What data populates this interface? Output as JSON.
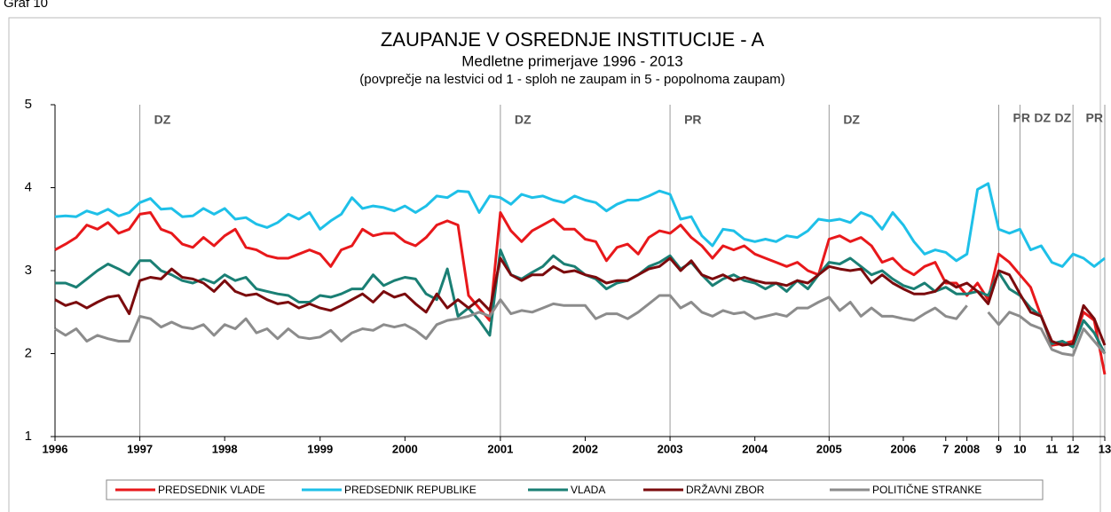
{
  "page_label": "Graf 10",
  "chart_data": {
    "type": "line",
    "title": "ZAUPANJE V OSREDNJE INSTITUCIJE - A",
    "subtitle": "Medletne primerjave 1996 - 2013",
    "note": "(povprečje na lestvici od 1 - sploh ne zaupam in 5 - popolnoma zaupam)",
    "categories": [
      "1996",
      null,
      null,
      null,
      null,
      null,
      null,
      null,
      "1997",
      null,
      null,
      null,
      null,
      null,
      null,
      null,
      "1998",
      null,
      null,
      null,
      null,
      null,
      null,
      null,
      null,
      "1999",
      null,
      null,
      null,
      null,
      null,
      null,
      null,
      "2000",
      null,
      null,
      null,
      null,
      null,
      null,
      null,
      null,
      "2001",
      null,
      null,
      null,
      null,
      null,
      null,
      null,
      "2002",
      null,
      null,
      null,
      null,
      null,
      null,
      null,
      "2003",
      null,
      null,
      null,
      null,
      null,
      null,
      null,
      "2004",
      null,
      null,
      null,
      null,
      null,
      null,
      "2005",
      null,
      null,
      null,
      null,
      null,
      null,
      "2006",
      null,
      null,
      null,
      "7",
      null,
      "2008",
      null,
      null,
      "9",
      null,
      "10",
      null,
      null,
      "11",
      null,
      "12",
      null,
      null,
      "13"
    ],
    "ylim": [
      1,
      5
    ],
    "yticks": [
      1,
      2,
      3,
      4,
      5
    ],
    "grid": false,
    "events": [
      {
        "label": "DZ",
        "at": "1997"
      },
      {
        "label": "DZ",
        "at": "2001"
      },
      {
        "label": "PR",
        "at": "2003"
      },
      {
        "label": "DZ",
        "at": "2005"
      },
      {
        "label": "PR",
        "at": "9"
      },
      {
        "label": "DZ",
        "at": "10"
      },
      {
        "label": "DZ",
        "at": "12"
      },
      {
        "label": "PR",
        "at": "13"
      }
    ],
    "series": [
      {
        "name": "PREDSEDNIK VLADE",
        "color": "#e8181b",
        "values": [
          3.25,
          3.32,
          3.4,
          3.55,
          3.5,
          3.58,
          3.45,
          3.5,
          3.68,
          3.7,
          3.5,
          3.45,
          3.32,
          3.28,
          3.4,
          3.3,
          3.42,
          3.5,
          3.28,
          3.25,
          3.18,
          3.15,
          3.15,
          3.2,
          3.25,
          3.2,
          3.05,
          3.25,
          3.3,
          3.5,
          3.42,
          3.45,
          3.45,
          3.35,
          3.3,
          3.4,
          3.55,
          3.6,
          3.55,
          2.7,
          2.55,
          2.4,
          3.7,
          3.48,
          3.35,
          3.48,
          3.55,
          3.62,
          3.5,
          3.5,
          3.38,
          3.35,
          3.12,
          3.28,
          3.32,
          3.2,
          3.4,
          3.48,
          3.45,
          3.55,
          3.4,
          3.3,
          3.15,
          3.3,
          3.25,
          3.3,
          3.2,
          3.15,
          3.1,
          3.05,
          3.1,
          3.0,
          2.95,
          3.38,
          3.42,
          3.35,
          3.4,
          3.3,
          3.1,
          3.15,
          3.02,
          2.95,
          3.05,
          3.1,
          2.85,
          2.85,
          2.7,
          2.85,
          2.65,
          3.2,
          3.1,
          2.95,
          2.8,
          2.45,
          2.1,
          2.12,
          2.15,
          2.5,
          2.4,
          1.75
        ]
      },
      {
        "name": "PREDSEDNIK REPUBLIKE",
        "color": "#1ec0e8",
        "values": [
          3.65,
          3.66,
          3.65,
          3.72,
          3.68,
          3.74,
          3.66,
          3.7,
          3.82,
          3.87,
          3.74,
          3.75,
          3.65,
          3.66,
          3.75,
          3.68,
          3.75,
          3.62,
          3.64,
          3.56,
          3.52,
          3.58,
          3.68,
          3.62,
          3.7,
          3.5,
          3.6,
          3.68,
          3.88,
          3.75,
          3.78,
          3.76,
          3.72,
          3.78,
          3.7,
          3.78,
          3.9,
          3.88,
          3.96,
          3.95,
          3.7,
          3.9,
          3.88,
          3.8,
          3.92,
          3.88,
          3.9,
          3.85,
          3.82,
          3.9,
          3.85,
          3.82,
          3.72,
          3.8,
          3.85,
          3.85,
          3.9,
          3.96,
          3.92,
          3.62,
          3.65,
          3.42,
          3.3,
          3.5,
          3.48,
          3.38,
          3.35,
          3.38,
          3.35,
          3.42,
          3.4,
          3.48,
          3.62,
          3.6,
          3.62,
          3.58,
          3.7,
          3.65,
          3.5,
          3.7,
          3.55,
          3.35,
          3.2,
          3.25,
          3.22,
          3.12,
          3.2,
          3.98,
          4.05,
          3.5,
          3.45,
          3.5,
          3.25,
          3.3,
          3.1,
          3.05,
          3.2,
          3.15,
          3.05,
          3.15
        ]
      },
      {
        "name": "VLADA",
        "color": "#1a7f74",
        "values": [
          2.85,
          2.85,
          2.8,
          2.9,
          3.0,
          3.08,
          3.02,
          2.95,
          3.12,
          3.12,
          3.0,
          2.95,
          2.88,
          2.85,
          2.9,
          2.85,
          2.95,
          2.88,
          2.92,
          2.78,
          2.75,
          2.72,
          2.7,
          2.62,
          2.62,
          2.7,
          2.68,
          2.72,
          2.78,
          2.78,
          2.95,
          2.82,
          2.88,
          2.92,
          2.9,
          2.72,
          2.65,
          3.02,
          2.45,
          2.55,
          2.4,
          2.22,
          3.25,
          2.95,
          2.9,
          2.98,
          3.05,
          3.18,
          3.08,
          3.05,
          2.95,
          2.9,
          2.78,
          2.85,
          2.88,
          2.95,
          3.05,
          3.1,
          3.18,
          3.02,
          3.1,
          2.95,
          2.82,
          2.9,
          2.95,
          2.88,
          2.85,
          2.78,
          2.85,
          2.75,
          2.88,
          2.78,
          2.95,
          3.1,
          3.08,
          3.15,
          3.05,
          2.95,
          3.0,
          2.9,
          2.82,
          2.78,
          2.85,
          2.75,
          2.8,
          2.72,
          2.72,
          2.75,
          2.7,
          2.98,
          2.78,
          2.7,
          2.55,
          2.45,
          2.12,
          2.15,
          2.08,
          2.4,
          2.25,
          2.0
        ]
      },
      {
        "name": "DRŽAVNI ZBOR",
        "color": "#7b0b0d",
        "values": [
          2.65,
          2.58,
          2.62,
          2.55,
          2.62,
          2.68,
          2.7,
          2.48,
          2.88,
          2.92,
          2.9,
          3.02,
          2.92,
          2.9,
          2.85,
          2.75,
          2.88,
          2.75,
          2.7,
          2.72,
          2.65,
          2.6,
          2.62,
          2.55,
          2.6,
          2.55,
          2.52,
          2.58,
          2.65,
          2.72,
          2.62,
          2.75,
          2.68,
          2.72,
          2.6,
          2.5,
          2.72,
          2.55,
          2.65,
          2.55,
          2.65,
          2.52,
          3.15,
          2.95,
          2.88,
          2.95,
          2.95,
          3.05,
          2.98,
          3.0,
          2.95,
          2.92,
          2.85,
          2.88,
          2.88,
          2.95,
          3.02,
          3.05,
          3.15,
          3.0,
          3.12,
          2.95,
          2.9,
          2.95,
          2.88,
          2.92,
          2.88,
          2.85,
          2.85,
          2.82,
          2.88,
          2.85,
          2.95,
          3.05,
          3.02,
          3.0,
          3.02,
          2.85,
          2.95,
          2.85,
          2.78,
          2.72,
          2.72,
          2.75,
          2.88,
          2.8,
          2.85,
          2.75,
          2.6,
          3.0,
          2.95,
          2.72,
          2.5,
          2.45,
          2.15,
          2.1,
          2.12,
          2.58,
          2.42,
          2.1
        ]
      },
      {
        "name": "POLITIČNE STRANKE",
        "color": "#8c8c8c",
        "values": [
          2.3,
          2.22,
          2.3,
          2.15,
          2.22,
          2.18,
          2.15,
          2.15,
          2.45,
          2.42,
          2.32,
          2.38,
          2.32,
          2.3,
          2.35,
          2.22,
          2.35,
          2.3,
          2.42,
          2.25,
          2.3,
          2.18,
          2.3,
          2.2,
          2.18,
          2.2,
          2.28,
          2.15,
          2.25,
          2.3,
          2.28,
          2.35,
          2.32,
          2.35,
          2.28,
          2.18,
          2.35,
          2.4,
          2.42,
          2.45,
          2.5,
          2.45,
          2.65,
          2.48,
          2.52,
          2.5,
          2.55,
          2.6,
          2.58,
          2.58,
          2.58,
          2.42,
          2.48,
          2.48,
          2.42,
          2.5,
          2.6,
          2.7,
          2.7,
          2.55,
          2.62,
          2.5,
          2.45,
          2.52,
          2.48,
          2.5,
          2.42,
          2.45,
          2.48,
          2.45,
          2.55,
          2.55,
          2.62,
          2.68,
          2.52,
          2.62,
          2.45,
          2.55,
          2.45,
          2.45,
          2.42,
          2.4,
          2.48,
          2.55,
          2.45,
          2.42,
          2.58,
          null,
          2.5,
          2.35,
          2.5,
          2.45,
          2.35,
          2.3,
          2.05,
          2.0,
          1.98,
          2.3,
          2.15,
          2.0
        ]
      }
    ]
  }
}
